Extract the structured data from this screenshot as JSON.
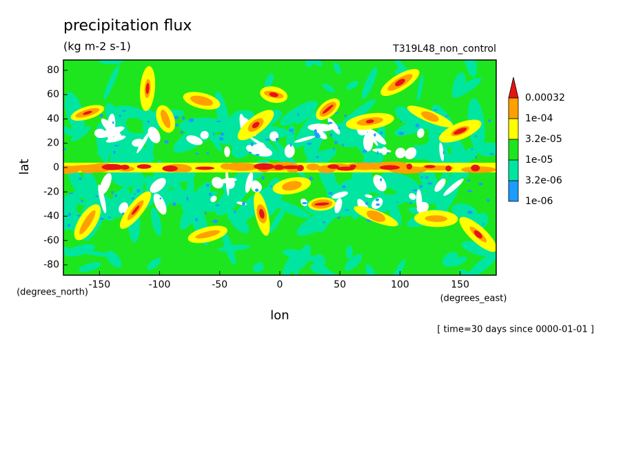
{
  "chart_data": {
    "type": "contour_map",
    "title": "precipitation flux",
    "subtitle": "(kg m-2 s-1)",
    "annotation": "T319L48_non_control",
    "time_label": "[ time=30 days since 0000-01-01 ]",
    "x_label": "lon",
    "x_units": "(degrees_east)",
    "y_label": "lat",
    "y_units": "(degrees_north)",
    "xlim": [
      -180,
      180
    ],
    "ylim": [
      -88.5,
      88.5
    ],
    "xticks": [
      -150,
      -100,
      -50,
      0,
      50,
      100,
      150
    ],
    "yticks": [
      -80,
      -60,
      -40,
      -20,
      0,
      20,
      40,
      60,
      80
    ],
    "colorbar": {
      "ticks": [
        {
          "value": 1e-06,
          "label": "1e-06"
        },
        {
          "value": 3.2e-06,
          "label": "3.2e-06"
        },
        {
          "value": 1e-05,
          "label": "1e-05"
        },
        {
          "value": 3.2e-05,
          "label": "3.2e-05"
        },
        {
          "value": 0.0001,
          "label": "1e-04"
        },
        0.00032
      ],
      "colors": [
        "#1e9bff",
        "#00e6a0",
        "#1ee61e",
        "#ffff00",
        "#ffa000",
        "#e61414"
      ],
      "below_color": "#ffffff"
    }
  }
}
